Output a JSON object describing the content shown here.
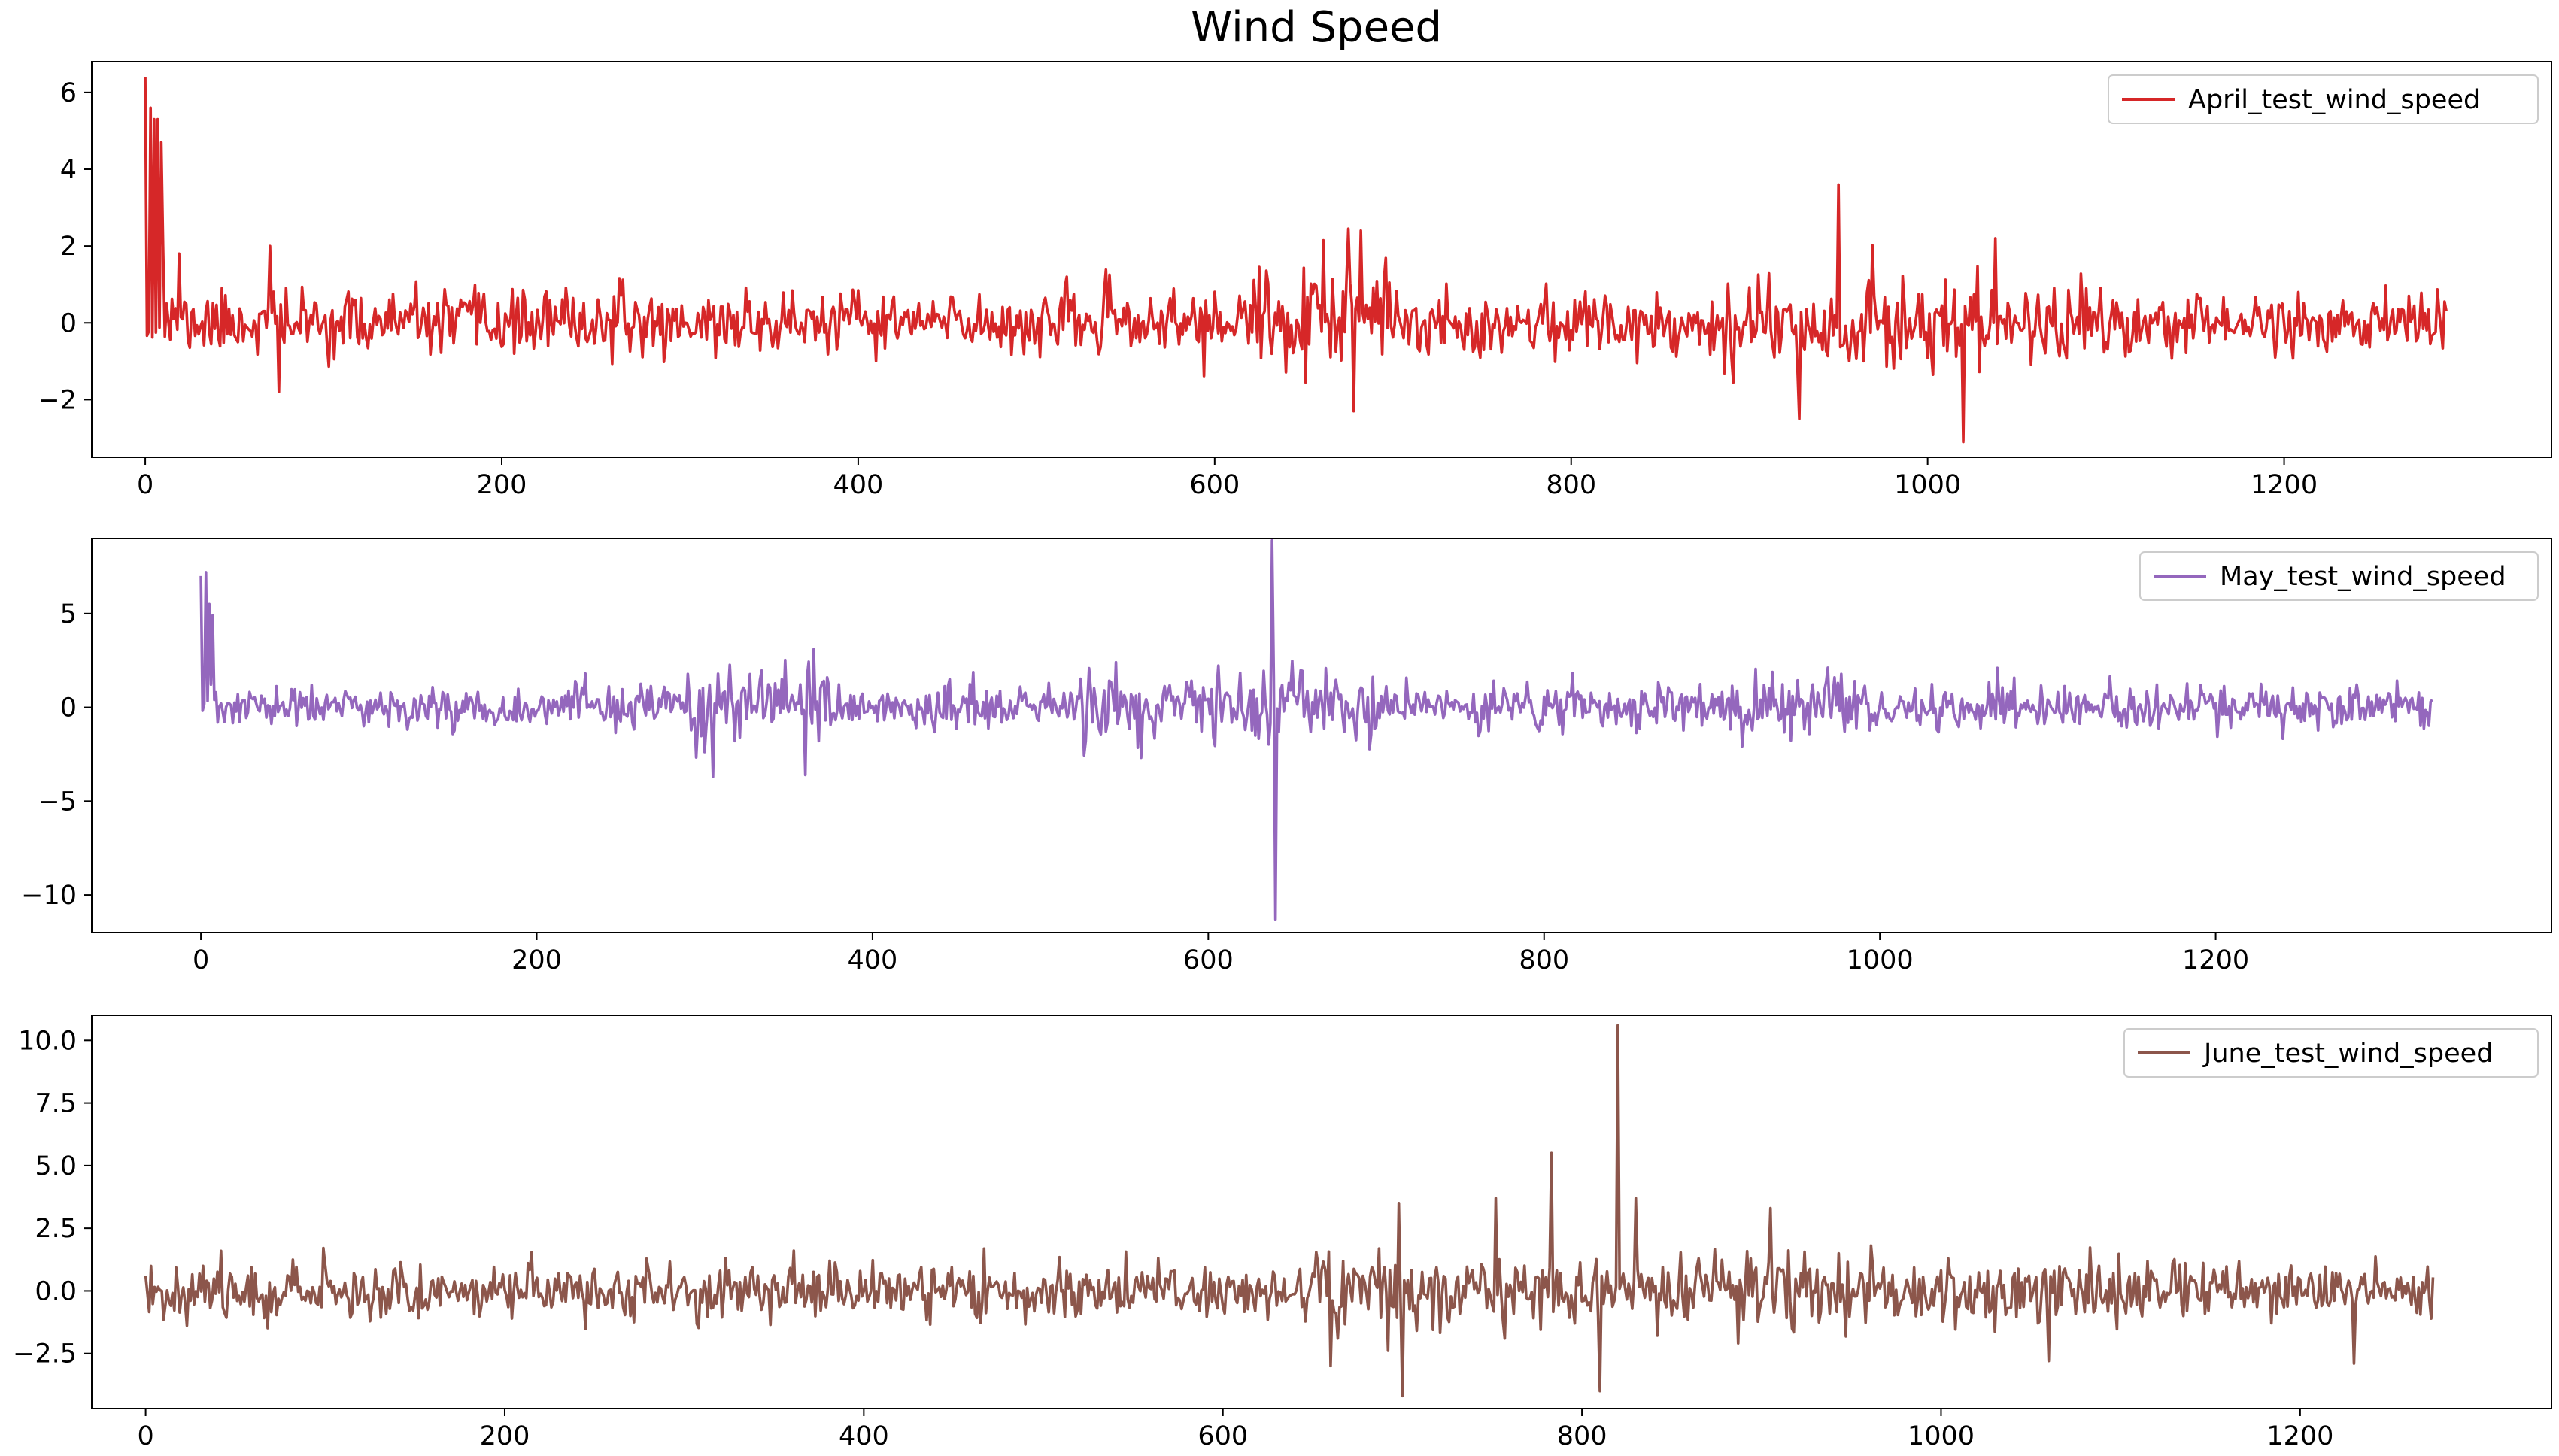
{
  "title": "Wind Speed",
  "chart_data": [
    {
      "type": "line",
      "series": [
        {
          "name": "April_test_wind_speed",
          "color": "#d62728",
          "n_points": 1292
        }
      ],
      "xlim": [
        -30,
        1350
      ],
      "ylim": [
        -3.5,
        6.8
      ],
      "xticks": [
        0,
        200,
        400,
        600,
        800,
        1000,
        1200
      ],
      "yticks": [
        -2,
        0,
        2,
        4,
        6
      ],
      "ytick_labels": [
        "−2",
        "0",
        "2",
        "4",
        "6"
      ],
      "legend": "top-right",
      "grid": false,
      "key_points": [
        [
          0,
          6.4
        ],
        [
          3,
          5.6
        ],
        [
          5,
          5.3
        ],
        [
          7,
          5.3
        ],
        [
          9,
          4.7
        ],
        [
          10,
          2.0
        ],
        [
          12,
          0.5
        ],
        [
          16,
          0.1
        ],
        [
          19,
          1.8
        ],
        [
          70,
          2.0
        ],
        [
          75,
          -1.8
        ],
        [
          950,
          3.6
        ],
        [
          1020,
          -3.1
        ],
        [
          1038,
          2.2
        ],
        [
          675,
          2.45
        ],
        [
          682,
          2.4
        ],
        [
          678,
          -2.3
        ],
        [
          928,
          -2.5
        ]
      ]
    },
    {
      "type": "line",
      "series": [
        {
          "name": "May_test_wind_speed",
          "color": "#9467bd",
          "n_points": 1330
        }
      ],
      "xlim": [
        -65,
        1400
      ],
      "ylim": [
        -12,
        9
      ],
      "xticks": [
        0,
        200,
        400,
        600,
        800,
        1000,
        1200
      ],
      "yticks": [
        -10,
        -5,
        0,
        5
      ],
      "ytick_labels": [
        "−10",
        "−5",
        "0",
        "5"
      ],
      "legend": "top-right",
      "grid": false,
      "key_points": [
        [
          0,
          7.0
        ],
        [
          3,
          7.2
        ],
        [
          5,
          5.5
        ],
        [
          7,
          4.9
        ],
        [
          9,
          0.8
        ],
        [
          10,
          -0.8
        ],
        [
          638,
          8.9
        ],
        [
          640,
          -11.3
        ],
        [
          365,
          3.1
        ],
        [
          305,
          -3.7
        ],
        [
          360,
          -3.6
        ],
        [
          545,
          2.4
        ],
        [
          1070,
          2.1
        ]
      ]
    },
    {
      "type": "line",
      "series": [
        {
          "name": "June_test_wind_speed",
          "color": "#8c564b",
          "n_points": 1275
        }
      ],
      "xlim": [
        -30,
        1340
      ],
      "ylim": [
        -4.7,
        11.0
      ],
      "xticks": [
        0,
        200,
        400,
        600,
        800,
        1000,
        1200
      ],
      "yticks": [
        -2.5,
        0.0,
        2.5,
        5.0,
        7.5,
        10.0
      ],
      "ytick_labels": [
        "−2.5",
        "0.0",
        "2.5",
        "5.0",
        "7.5",
        "10.0"
      ],
      "legend": "top-right",
      "grid": false,
      "key_points": [
        [
          0,
          0.6
        ],
        [
          820,
          10.6
        ],
        [
          783,
          5.5
        ],
        [
          698,
          3.5
        ],
        [
          700,
          -4.2
        ],
        [
          752,
          3.7
        ],
        [
          810,
          -4.0
        ],
        [
          830,
          3.7
        ],
        [
          905,
          3.3
        ],
        [
          660,
          -3.0
        ],
        [
          1060,
          -2.8
        ],
        [
          1230,
          -2.9
        ]
      ]
    }
  ]
}
